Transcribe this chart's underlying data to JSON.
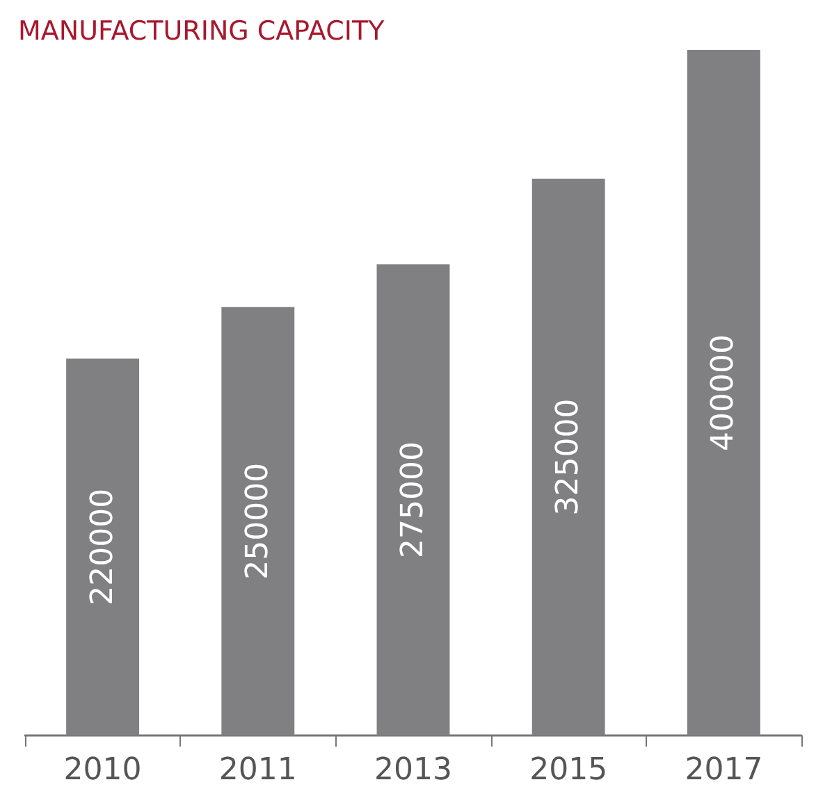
{
  "chart_data": {
    "type": "bar",
    "title": "MANUFACTURING CAPACITY",
    "categories": [
      "2010",
      "2011",
      "2013",
      "2015",
      "2017"
    ],
    "values": [
      220000,
      250000,
      275000,
      325000,
      400000
    ],
    "color": "#808083",
    "data_labels": true
  }
}
